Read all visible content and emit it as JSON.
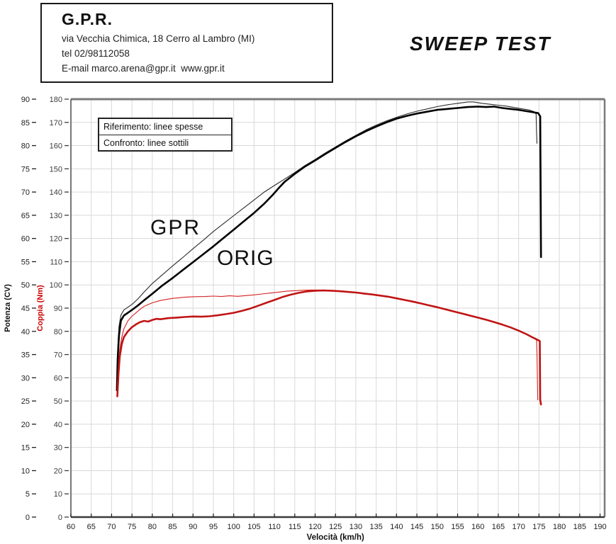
{
  "header": {
    "company": "G.P.R.",
    "address": "via Vecchia Chimica, 18 Cerro al Lambro (MI)",
    "phone": "tel 02/98112058",
    "email": "E-mail marco.arena@gpr.it  www.gpr.it",
    "test_title": "SWEEP TEST"
  },
  "chart": {
    "legend": [
      "Riferimento: linee spesse",
      "Confronto: linee sottili"
    ],
    "curve_labels": {
      "gpr": "GPR",
      "orig": "ORIG"
    }
  },
  "colors": {
    "thick_black": "#000000",
    "thin_black": "#2b2b2b",
    "thick_red": "#c01414",
    "thin_red": "#d42222",
    "grid": "#d9d9d9",
    "spine_gray": "#7a7a7a",
    "spine_dark": "#3a3a3a",
    "tick_text": "#1f1f1f",
    "torque_tick_text": "#3d3d3d",
    "coppia_label_red": "#cc0000"
  },
  "chart_data": {
    "type": "line",
    "title": "SWEEP TEST",
    "xlabel": "Velocità (km/h)",
    "ylabel_power": "Potenza (CV)",
    "ylabel_torque": "Coppia (Nm)",
    "x_range": [
      60,
      190
    ],
    "x_tick_step": 5,
    "power_range": [
      0,
      90
    ],
    "power_tick_step": 5,
    "torque_range": [
      0,
      180
    ],
    "torque_tick_step": 10,
    "grid": true,
    "legend_note": "Riferimento = linee spesse (thick), Confronto = linee sottili (thin)",
    "series": [
      {
        "name": "GPR power (CV, linea sottile)",
        "axis": "power",
        "width": 1.1,
        "points": [
          [
            71.3,
            27.5
          ],
          [
            71.5,
            36
          ],
          [
            71.8,
            41
          ],
          [
            72.3,
            43.5
          ],
          [
            73,
            44.6
          ],
          [
            74,
            45.2
          ],
          [
            75,
            45.8
          ],
          [
            76.5,
            47
          ],
          [
            78,
            48.5
          ],
          [
            80,
            50.3
          ],
          [
            82.5,
            52.2
          ],
          [
            85,
            54.1
          ],
          [
            87.5,
            55.9
          ],
          [
            90,
            57.8
          ],
          [
            92.5,
            59.6
          ],
          [
            95,
            61.5
          ],
          [
            97.5,
            63.2
          ],
          [
            100,
            64.9
          ],
          [
            102.5,
            66.6
          ],
          [
            105,
            68.3
          ],
          [
            107.5,
            70
          ],
          [
            110,
            71.4
          ],
          [
            112.5,
            72.8
          ],
          [
            115,
            74.2
          ],
          [
            117.5,
            75.7
          ],
          [
            120,
            77
          ],
          [
            122.5,
            78.4
          ],
          [
            125,
            79.7
          ],
          [
            127.5,
            81
          ],
          [
            130,
            82.2
          ],
          [
            132.5,
            83.4
          ],
          [
            135,
            84.4
          ],
          [
            137.5,
            85.3
          ],
          [
            140,
            86.1
          ],
          [
            142.5,
            86.8
          ],
          [
            145,
            87.4
          ],
          [
            147.5,
            87.9
          ],
          [
            150,
            88.4
          ],
          [
            152.5,
            88.8
          ],
          [
            155,
            89.1
          ],
          [
            157.5,
            89.4
          ],
          [
            159,
            89.4
          ],
          [
            161,
            89.1
          ],
          [
            163,
            88.9
          ],
          [
            165,
            88.7
          ],
          [
            167,
            88.5
          ],
          [
            169,
            88.2
          ],
          [
            171,
            87.9
          ],
          [
            172.5,
            87.7
          ],
          [
            173.8,
            87.3
          ],
          [
            174.3,
            86.8
          ],
          [
            174.4,
            83
          ],
          [
            174.5,
            80.5
          ]
        ]
      },
      {
        "name": "ORIG power (CV, linea spessa)",
        "axis": "power",
        "width": 2.6,
        "points": [
          [
            71.3,
            27.3
          ],
          [
            71.5,
            34
          ],
          [
            71.8,
            39
          ],
          [
            72.3,
            42.3
          ],
          [
            73,
            43.4
          ],
          [
            74,
            44
          ],
          [
            75,
            44.6
          ],
          [
            76.5,
            45.6
          ],
          [
            78,
            46.7
          ],
          [
            80,
            48.1
          ],
          [
            82.5,
            49.9
          ],
          [
            85,
            51.5
          ],
          [
            87.5,
            53.2
          ],
          [
            90,
            54.9
          ],
          [
            92.5,
            56.6
          ],
          [
            95,
            58.3
          ],
          [
            97.5,
            60.1
          ],
          [
            100,
            61.9
          ],
          [
            102.5,
            63.7
          ],
          [
            105,
            65.5
          ],
          [
            107.5,
            67.5
          ],
          [
            109.5,
            69.3
          ],
          [
            111,
            70.8
          ],
          [
            112.5,
            72.2
          ],
          [
            115,
            73.9
          ],
          [
            117.5,
            75.5
          ],
          [
            120,
            76.8
          ],
          [
            122.5,
            78.2
          ],
          [
            125,
            79.5
          ],
          [
            127.5,
            80.8
          ],
          [
            130,
            82
          ],
          [
            132.5,
            83.1
          ],
          [
            135,
            84.1
          ],
          [
            137.5,
            85
          ],
          [
            140,
            85.8
          ],
          [
            142.5,
            86.4
          ],
          [
            145,
            86.9
          ],
          [
            147.5,
            87.3
          ],
          [
            150,
            87.7
          ],
          [
            152.5,
            87.9
          ],
          [
            155,
            88.1
          ],
          [
            157.5,
            88.3
          ],
          [
            160,
            88.4
          ],
          [
            162,
            88.3
          ],
          [
            164,
            88.4
          ],
          [
            166,
            88.1
          ],
          [
            168,
            87.9
          ],
          [
            170,
            87.7
          ],
          [
            172,
            87.4
          ],
          [
            173.5,
            87.2
          ],
          [
            174.8,
            87
          ],
          [
            175.3,
            86.3
          ],
          [
            175.4,
            70
          ],
          [
            175.5,
            56
          ]
        ]
      },
      {
        "name": "GPR torque (Nm, linea sottile)",
        "axis": "torque",
        "width": 1.1,
        "points": [
          [
            71.4,
            56.5
          ],
          [
            71.7,
            66
          ],
          [
            72,
            72
          ],
          [
            72.5,
            77.5
          ],
          [
            73,
            81
          ],
          [
            74,
            84.5
          ],
          [
            75,
            86.5
          ],
          [
            76,
            88
          ],
          [
            77,
            89.5
          ],
          [
            78,
            90.8
          ],
          [
            80,
            92.3
          ],
          [
            82,
            93.3
          ],
          [
            85,
            94.2
          ],
          [
            88,
            94.7
          ],
          [
            90,
            94.9
          ],
          [
            93,
            95
          ],
          [
            95,
            95.2
          ],
          [
            97,
            95
          ],
          [
            99,
            95.3
          ],
          [
            101,
            95.1
          ],
          [
            103,
            95.4
          ],
          [
            105,
            95.7
          ],
          [
            107,
            96.1
          ],
          [
            109,
            96.5
          ],
          [
            111,
            96.9
          ],
          [
            113,
            97.3
          ],
          [
            115,
            97.5
          ],
          [
            117,
            97.7
          ],
          [
            119,
            97.8
          ],
          [
            121,
            97.8
          ],
          [
            123,
            97.6
          ],
          [
            125,
            97.4
          ],
          [
            127,
            97.2
          ],
          [
            129,
            96.9
          ],
          [
            131,
            96.6
          ],
          [
            133,
            96.2
          ],
          [
            135,
            95.7
          ],
          [
            137,
            95.2
          ],
          [
            139,
            94.6
          ],
          [
            141,
            93.9
          ],
          [
            143,
            93.2
          ],
          [
            145,
            92.5
          ],
          [
            147,
            91.7
          ],
          [
            149,
            90.9
          ],
          [
            151,
            90
          ],
          [
            153,
            89.2
          ],
          [
            155,
            88.3
          ],
          [
            157,
            87.5
          ],
          [
            159,
            86.5
          ],
          [
            161,
            85.5
          ],
          [
            163,
            84.5
          ],
          [
            165,
            83.4
          ],
          [
            167,
            82.3
          ],
          [
            169,
            81
          ],
          [
            171,
            79.6
          ],
          [
            172.5,
            78.3
          ],
          [
            174,
            76.8
          ],
          [
            174.4,
            76.3
          ],
          [
            174.5,
            71
          ],
          [
            174.7,
            50.5
          ]
        ]
      },
      {
        "name": "ORIG torque (Nm, linea spessa)",
        "axis": "torque",
        "width": 2.6,
        "points": [
          [
            71.4,
            52
          ],
          [
            71.7,
            62
          ],
          [
            72,
            69
          ],
          [
            72.5,
            74.5
          ],
          [
            73,
            77.5
          ],
          [
            74,
            80
          ],
          [
            75,
            81.8
          ],
          [
            76,
            83
          ],
          [
            77,
            84
          ],
          [
            78,
            84.5
          ],
          [
            79,
            84.2
          ],
          [
            80,
            84.9
          ],
          [
            81,
            85.4
          ],
          [
            82,
            85.2
          ],
          [
            84,
            85.7
          ],
          [
            86,
            85.9
          ],
          [
            88,
            86.2
          ],
          [
            90,
            86.4
          ],
          [
            92,
            86.3
          ],
          [
            94,
            86.5
          ],
          [
            96,
            86.9
          ],
          [
            98,
            87.4
          ],
          [
            100,
            88
          ],
          [
            102,
            88.8
          ],
          [
            104,
            89.8
          ],
          [
            106,
            91
          ],
          [
            108,
            92.3
          ],
          [
            110,
            93.5
          ],
          [
            112,
            94.8
          ],
          [
            114,
            95.8
          ],
          [
            116,
            96.6
          ],
          [
            118,
            97.2
          ],
          [
            120,
            97.5
          ],
          [
            122,
            97.6
          ],
          [
            124,
            97.5
          ],
          [
            126,
            97.3
          ],
          [
            128,
            97
          ],
          [
            130,
            96.7
          ],
          [
            132,
            96.3
          ],
          [
            134,
            95.9
          ],
          [
            136,
            95.4
          ],
          [
            138,
            94.9
          ],
          [
            140,
            94.2
          ],
          [
            142,
            93.5
          ],
          [
            144,
            92.8
          ],
          [
            146,
            92
          ],
          [
            148,
            91.2
          ],
          [
            150,
            90.4
          ],
          [
            152,
            89.5
          ],
          [
            154,
            88.6
          ],
          [
            156,
            87.7
          ],
          [
            158,
            86.8
          ],
          [
            160,
            85.9
          ],
          [
            162,
            85
          ],
          [
            164,
            84
          ],
          [
            166,
            82.9
          ],
          [
            168,
            81.7
          ],
          [
            170,
            80.3
          ],
          [
            172,
            78.7
          ],
          [
            173.5,
            77.3
          ],
          [
            174.8,
            76.2
          ],
          [
            175.2,
            75.8
          ],
          [
            175.3,
            50.5
          ],
          [
            175.5,
            48.5
          ]
        ]
      }
    ]
  }
}
